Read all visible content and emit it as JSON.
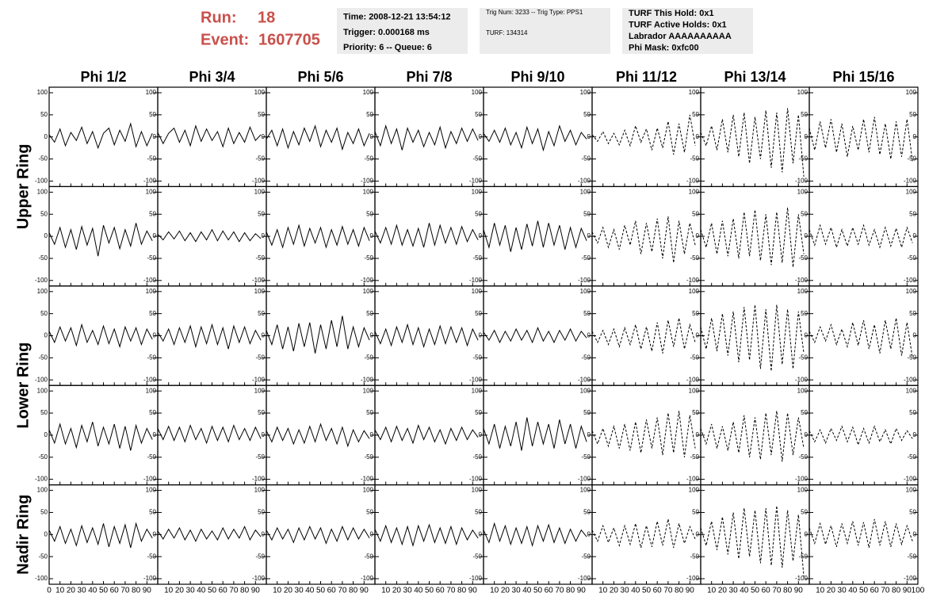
{
  "header": {
    "run_label": "Run:",
    "run": "18",
    "event_label": "Event:",
    "event": "1607705",
    "boxes": [
      [
        "Time: 2008-12-21 13:54:12",
        "Trigger: 0.000168 ms",
        "Priority: 6 -- Queue: 6"
      ],
      [
        "Trig Num: 3233 -- Trig Type: PPS1",
        "TURF: 134314"
      ],
      [
        "TURF This Hold: 0x1",
        "TURF Active Holds: 0x1",
        "Labrador AAAAAAAAAA",
        "Phi Mask: 0xfc00"
      ]
    ]
  },
  "chart_data": {
    "type": "line",
    "color": "#000000",
    "columns": [
      {
        "name": "Phi 1/2",
        "dashed": false
      },
      {
        "name": "Phi 3/4",
        "dashed": false
      },
      {
        "name": "Phi 5/6",
        "dashed": false
      },
      {
        "name": "Phi 7/8",
        "dashed": false
      },
      {
        "name": "Phi 9/10",
        "dashed": false
      },
      {
        "name": "Phi 11/12",
        "dashed": true
      },
      {
        "name": "Phi 13/14",
        "dashed": true
      },
      {
        "name": "Phi 15/16",
        "dashed": true
      }
    ],
    "xlim": [
      0,
      100
    ],
    "xticks": [
      0,
      10,
      20,
      30,
      40,
      50,
      60,
      70,
      80,
      90,
      100
    ],
    "ylim": [
      -100,
      100
    ],
    "yticks": [
      -100,
      -50,
      0,
      50,
      100
    ],
    "x": [
      0,
      5,
      10,
      15,
      20,
      25,
      30,
      35,
      40,
      45,
      50,
      55,
      60,
      65,
      70,
      75,
      80,
      85,
      90,
      95
    ],
    "rings": [
      {
        "name": "Upper Ring",
        "rows": [
          [
            [
              5,
              -12,
              18,
              -20,
              10,
              -8,
              22,
              -15,
              12,
              -25,
              8,
              20,
              -18,
              15,
              -10,
              30,
              -22,
              12,
              -20,
              8
            ],
            [
              10,
              -15,
              8,
              20,
              -12,
              15,
              -20,
              25,
              -10,
              18,
              -8,
              12,
              -22,
              20,
              -15,
              10,
              -12,
              22,
              -8,
              5
            ],
            [
              -5,
              15,
              -20,
              18,
              -25,
              12,
              -18,
              20,
              -10,
              25,
              -22,
              15,
              -12,
              20,
              -28,
              10,
              -15,
              18,
              -20,
              8
            ],
            [
              12,
              -20,
              25,
              -15,
              18,
              -30,
              20,
              -12,
              15,
              -22,
              10,
              -18,
              22,
              -25,
              12,
              -15,
              20,
              -10,
              18,
              -8
            ],
            [
              8,
              -10,
              15,
              -12,
              20,
              -18,
              10,
              -25,
              22,
              -15,
              18,
              -30,
              12,
              -20,
              25,
              -10,
              15,
              -18,
              10,
              -5
            ],
            [
              5,
              -10,
              12,
              -15,
              8,
              -18,
              15,
              -20,
              25,
              -12,
              18,
              -30,
              20,
              -25,
              35,
              -40,
              30,
              -35,
              50,
              -20
            ],
            [
              10,
              -20,
              25,
              -30,
              40,
              -35,
              50,
              -45,
              55,
              -60,
              45,
              -50,
              60,
              -70,
              55,
              -80,
              65,
              -60,
              50,
              -90
            ],
            [
              20,
              -30,
              35,
              -25,
              40,
              -35,
              30,
              -45,
              25,
              -30,
              40,
              -35,
              45,
              -40,
              30,
              -50,
              35,
              -45,
              40,
              -55
            ]
          ],
          [
            [
              8,
              -18,
              20,
              -25,
              15,
              -30,
              22,
              -20,
              18,
              -45,
              25,
              -15,
              20,
              -28,
              15,
              -22,
              30,
              -18,
              12,
              -10
            ],
            [
              5,
              -8,
              10,
              -6,
              12,
              -10,
              8,
              -12,
              10,
              -8,
              15,
              -10,
              12,
              -8,
              10,
              -12,
              8,
              -10,
              6,
              -5
            ],
            [
              10,
              -20,
              15,
              -25,
              20,
              -18,
              25,
              -22,
              18,
              -15,
              20,
              -25,
              15,
              -20,
              22,
              -18,
              15,
              -22,
              20,
              -10
            ],
            [
              12,
              -15,
              20,
              -18,
              25,
              -20,
              15,
              -22,
              18,
              -25,
              30,
              -20,
              25,
              -15,
              20,
              -18,
              22,
              -12,
              15,
              -8
            ],
            [
              15,
              -25,
              30,
              -20,
              25,
              -35,
              20,
              -30,
              28,
              -22,
              35,
              -25,
              30,
              -20,
              25,
              -30,
              20,
              -25,
              18,
              -10
            ],
            [
              10,
              -15,
              20,
              -25,
              15,
              -30,
              25,
              -20,
              35,
              -40,
              30,
              -35,
              40,
              -50,
              45,
              -60,
              35,
              -40,
              30,
              -20
            ],
            [
              15,
              -25,
              30,
              -40,
              35,
              -45,
              40,
              -50,
              55,
              -45,
              60,
              -55,
              50,
              -65,
              55,
              -60,
              65,
              -70,
              50,
              -40
            ],
            [
              15,
              -20,
              25,
              -18,
              20,
              -25,
              15,
              -22,
              20,
              -18,
              25,
              -20,
              15,
              -25,
              20,
              -22,
              18,
              -25,
              20,
              -15
            ]
          ]
        ]
      },
      {
        "name": "Lower Ring",
        "rows": [
          [
            [
              10,
              -15,
              20,
              -12,
              18,
              -22,
              25,
              -15,
              12,
              -20,
              22,
              -18,
              15,
              -25,
              20,
              -12,
              18,
              -20,
              15,
              -8
            ],
            [
              8,
              -12,
              15,
              -20,
              18,
              -15,
              22,
              -25,
              20,
              -18,
              25,
              -20,
              18,
              -30,
              22,
              -15,
              20,
              -18,
              12,
              -10
            ],
            [
              12,
              -20,
              25,
              -30,
              20,
              -35,
              28,
              -25,
              30,
              -40,
              25,
              -30,
              35,
              -25,
              45,
              -30,
              20,
              -25,
              18,
              -10
            ],
            [
              10,
              -18,
              15,
              -22,
              20,
              -15,
              25,
              -20,
              18,
              -25,
              15,
              -20,
              22,
              -18,
              20,
              -15,
              18,
              -22,
              15,
              -10
            ],
            [
              8,
              -10,
              12,
              -15,
              10,
              -12,
              15,
              -10,
              12,
              -15,
              18,
              -12,
              10,
              -15,
              12,
              -10,
              15,
              -12,
              10,
              -5
            ],
            [
              10,
              -15,
              12,
              -20,
              15,
              -25,
              18,
              -20,
              25,
              -30,
              20,
              -35,
              30,
              -40,
              35,
              -25,
              40,
              -30,
              25,
              -15
            ],
            [
              20,
              -30,
              40,
              -35,
              50,
              -45,
              55,
              -60,
              65,
              -55,
              70,
              -75,
              60,
              -80,
              70,
              -65,
              60,
              -75,
              55,
              -40
            ],
            [
              10,
              -15,
              20,
              -12,
              25,
              -20,
              15,
              -25,
              30,
              -22,
              35,
              -30,
              25,
              -40,
              35,
              -30,
              40,
              -45,
              30,
              -50
            ]
          ],
          [
            [
              12,
              -18,
              25,
              -20,
              15,
              -28,
              22,
              -15,
              30,
              -25,
              18,
              -20,
              25,
              -30,
              20,
              -35,
              22,
              -18,
              15,
              -10
            ],
            [
              15,
              -10,
              20,
              -12,
              18,
              -15,
              22,
              -10,
              15,
              -18,
              20,
              -12,
              18,
              -15,
              22,
              -10,
              15,
              -12,
              18,
              -8
            ],
            [
              10,
              -15,
              18,
              -12,
              15,
              -20,
              12,
              -18,
              20,
              -15,
              25,
              -12,
              15,
              -20,
              18,
              -25,
              12,
              -15,
              10,
              -8
            ],
            [
              12,
              -10,
              18,
              -15,
              20,
              -12,
              15,
              -18,
              22,
              -10,
              18,
              -15,
              12,
              -20,
              15,
              -12,
              18,
              -10,
              12,
              -5
            ],
            [
              15,
              -20,
              25,
              -30,
              20,
              -25,
              30,
              -35,
              40,
              -25,
              30,
              -20,
              25,
              -30,
              35,
              -20,
              25,
              -30,
              20,
              -15
            ],
            [
              10,
              -20,
              15,
              -25,
              20,
              -30,
              25,
              -35,
              30,
              -40,
              35,
              -30,
              40,
              -45,
              50,
              -40,
              55,
              -50,
              45,
              -30
            ],
            [
              15,
              -20,
              25,
              -30,
              20,
              -35,
              30,
              -40,
              45,
              -50,
              40,
              -55,
              50,
              -45,
              55,
              -60,
              50,
              -45,
              40,
              -30
            ],
            [
              10,
              -15,
              12,
              -18,
              15,
              -12,
              20,
              -15,
              18,
              -22,
              15,
              -18,
              20,
              -15,
              12,
              -20,
              15,
              -12,
              10,
              -8
            ]
          ]
        ]
      },
      {
        "name": "Nadir Ring",
        "rows": [
          [
            [
              10,
              -15,
              18,
              -20,
              12,
              -25,
              20,
              -18,
              15,
              -22,
              25,
              -28,
              18,
              -20,
              22,
              -30,
              25,
              -15,
              12,
              -8
            ],
            [
              8,
              -10,
              12,
              -8,
              15,
              -12,
              10,
              -15,
              12,
              -10,
              8,
              -12,
              15,
              -10,
              12,
              -8,
              18,
              -12,
              10,
              -5
            ],
            [
              10,
              -12,
              15,
              -10,
              12,
              -18,
              15,
              -12,
              18,
              -10,
              15,
              -20,
              12,
              -15,
              18,
              -12,
              15,
              -10,
              12,
              -8
            ],
            [
              12,
              -15,
              20,
              -18,
              15,
              -22,
              18,
              -25,
              20,
              -15,
              22,
              -18,
              15,
              -20,
              18,
              -22,
              15,
              -12,
              10,
              -8
            ],
            [
              10,
              -18,
              25,
              -15,
              20,
              -22,
              15,
              -20,
              18,
              -25,
              20,
              -15,
              22,
              -18,
              15,
              -20,
              12,
              -15,
              10,
              -5
            ],
            [
              10,
              -15,
              20,
              -18,
              15,
              -25,
              20,
              -22,
              25,
              -30,
              20,
              -28,
              30,
              -25,
              35,
              -30,
              25,
              -20,
              18,
              -10
            ],
            [
              15,
              -25,
              30,
              -35,
              40,
              -45,
              50,
              -55,
              60,
              -50,
              55,
              -65,
              60,
              -70,
              65,
              -75,
              55,
              -60,
              45,
              -95
            ],
            [
              15,
              -20,
              25,
              -22,
              20,
              -28,
              25,
              -20,
              30,
              -25,
              28,
              -30,
              35,
              -25,
              30,
              -28,
              25,
              -22,
              20,
              -15
            ]
          ]
        ]
      }
    ]
  }
}
